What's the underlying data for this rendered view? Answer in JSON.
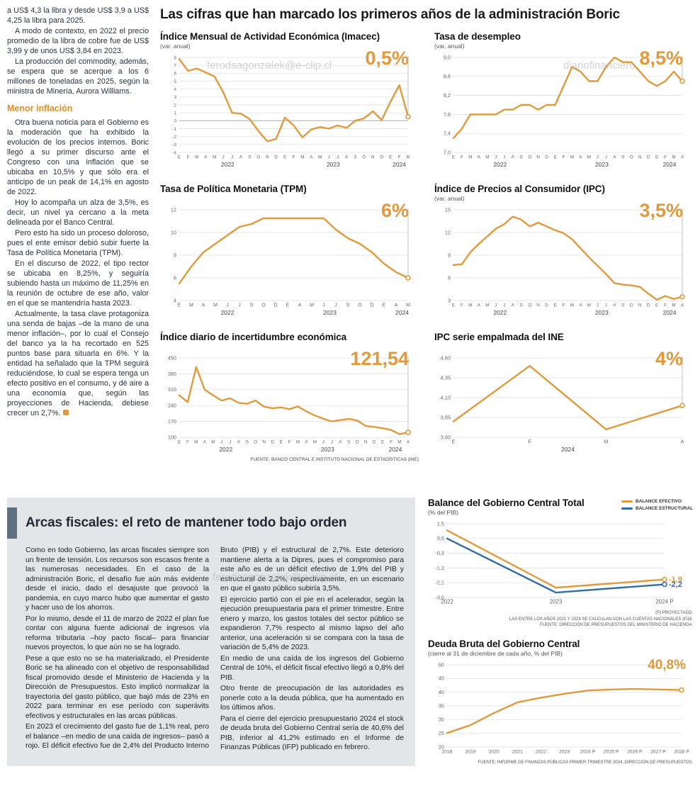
{
  "colors": {
    "orange": "#E2993B",
    "blue": "#336DA5",
    "panel_gray": "#E3E6E9",
    "accent_slate": "#5E7081"
  },
  "watermarks": {
    "left": "ferodsagonzalek@e-clip.cl",
    "right": "diariofinanciero",
    "bottom": "ferodsagonzalek@e-clip.cl"
  },
  "main_title": "Las cifras que han marcado los primeros años de la administración Boric",
  "article": {
    "lead_paragraphs": [
      "a US$ 4,3 la libra y desde US$ 3,9 a US$ 4,25 la libra para 2025.",
      "A modo de contexto, en 2022 el precio promedio de la libra de cobre fue de US$ 3,99 y de unos US$ 3,84 en 2023.",
      "La producción del commodity, además, se espera que se acerque a los 6 millones de toneladas en 2025, según la ministra de Minería, Aurora Williams."
    ],
    "heading": "Menor inflación",
    "body_paragraphs": [
      "Otra buena noticia para el Gobierno es la moderación que ha exhibido la evolución de los precios internos. Boric llegó a su primer discurso ante el Congreso con una inflación que se ubicaba en 10,5% y que sólo era el anticipo de un peak de 14,1% en agosto de 2022.",
      "Hoy lo acompaña un alza de 3,5%, es decir, un nivel ya cercano a la meta delineada por el Banco Central.",
      "Pero esto ha sido un proceso doloroso, pues el ente emisor debió subir fuerte la Tasa de Política Monetaria (TPM).",
      "En el discurso de 2022, el tipo rector se ubicaba en 8,25%, y seguiría subiendo hasta un máximo de 11,25% en la reunión de octubre de ese año, valor en el que se mantendría hasta 2023.",
      "Actualmente, la tasa clave protagoniza una senda de bajas –de la mano de una menor inflación–, por lo cual el Consejo del banco ya la ha recortado en 525 puntos base para situarla en 6%. Y la entidad ha señalado que la TPM seguirá reduciéndose, lo cual se espera tenga un efecto positivo en el consumo, y dé aire a una economía que, según las proyecciones de Hacienda, debiese crecer un 2,7%."
    ]
  },
  "source_note": "FUENTE: BANCO CENTRAL E INSTITUTO NACIONAL DE ESTADÍSTICAS (INE)",
  "arcas": {
    "title": "Arcas fiscales: el reto de mantener todo bajo orden",
    "paragraphs": [
      "Como en todo Gobierno, las arcas fiscales siempre son un frente de tensión. Los recursos son escasos frente a las numerosas necesidades. En el caso de la administración Boric, el desafío fue aún más evidente desde el inicio, dado el desajuste que provocó la pandemia, en cuyo marco hubo que aumentar el gasto y hacer uso de los ahorros.",
      "Por lo mismo, desde el 11 de marzo de 2022 el plan fue contar con alguna fuente adicional de ingresos vía reforma tributaria –hoy pacto fiscal– para financiar nuevos proyectos, lo que aún no se ha logrado.",
      "Pese a que esto no se ha materializado, el Presidente Boric se ha alineado con el objetivo de responsabilidad fiscal promovido desde el Ministerio de Hacienda y la Dirección de Presupuestos. Esto implicó normalizar la trayectoria del gasto público, que bajó más de 23% en 2022 para terminar en ese período con superávits efectivos y estructurales en las arcas públicas.",
      "En 2023 el crecimiento del gasto fue de 1,1% real, pero el balance –en medio de una caída de ingresos– pasó a rojo. El déficit efectivo fue de 2,4% del Producto Interno Bruto (PIB) y el estructural de 2,7%. Este deterioro mantiene alerta a la Dipres, pues el compromiso para este año es de un déficit efectivo de 1,9% del PIB y estructural de 2,2%, respectivamente, en un escenario en que el gasto público subiría 3,5%.",
      "El ejercicio partió con el pie en el acelerador, según la ejecución presupuestaria para el primer trimestre. Entre enero y marzo, los gastos totales del sector público se expandieron 7,7% respecto al mismo lapso del año anterior, una aceleración si se compara con la tasa de variación de 5,4% de 2023.",
      "En medio de una caída de los ingresos del Gobierno Central de 10%, el déficit fiscal efectivo llegó a 0,8% del PIB.",
      "Otro frente de preocupación de las autoridades es ponerle coto a la deuda pública, que ha aumentado en los últimos años.",
      "Para el cierre del ejercicio presupuestario 2024 el stock de deuda bruta del Gobierno Central sería de 40,6% del PIB, inferior al 41,2% estimado en el Informe de Finanzas Públicas (IFP) publicado en febrero."
    ]
  },
  "chart_data": [
    {
      "id": "imacec",
      "type": "line",
      "title": "Índice Mensual de Actividad Económica (Imacec)",
      "subtitle": "(var. anual)",
      "highlight": "0,5%",
      "y_ticks": [
        "8",
        "7",
        "6",
        "5",
        "4",
        "3",
        "2",
        "1",
        "0",
        "-1",
        "-2",
        "-3",
        "-4"
      ],
      "x_labels": [
        "E",
        "F",
        "M",
        "A",
        "M",
        "J",
        "J",
        "A",
        "S",
        "O",
        "N",
        "D",
        "E",
        "F",
        "M",
        "A",
        "M",
        "J",
        "J",
        "A",
        "S",
        "O",
        "N",
        "D",
        "E",
        "F",
        "M"
      ],
      "years": [
        {
          "label": "2022",
          "at": 5.5
        },
        {
          "label": "2023",
          "at": 17.5
        },
        {
          "label": "2024",
          "at": 25
        }
      ],
      "series": [
        {
          "name": "Imacec var. anual %",
          "color": "#E2993B",
          "values": [
            7.8,
            6.3,
            6.6,
            6.1,
            5.6,
            3.6,
            1.0,
            0.9,
            0.2,
            -1.3,
            -2.6,
            -2.3,
            0.4,
            -0.6,
            -2.1,
            -1.1,
            -0.8,
            -1.0,
            -0.6,
            -0.9,
            0.0,
            0.3,
            1.2,
            0.1,
            2.4,
            4.5,
            0.5
          ]
        }
      ],
      "leader": true,
      "y_font": 6.2
    },
    {
      "id": "desempleo",
      "type": "line",
      "title": "Tasa de desempleo",
      "subtitle": "(var. anual)",
      "highlight": "8,5%",
      "y_ticks": [
        "9,0",
        "8,6",
        "8,2",
        "7,8",
        "7,4",
        "7,0"
      ],
      "x_labels": [
        "E",
        "F",
        "M",
        "A",
        "M",
        "J",
        "J",
        "A",
        "S",
        "O",
        "N",
        "D",
        "E",
        "F",
        "M",
        "A",
        "M",
        "J",
        "J",
        "A",
        "S",
        "O",
        "N",
        "D",
        "E",
        "F",
        "M",
        "A"
      ],
      "years": [
        {
          "label": "2022",
          "at": 5.5
        },
        {
          "label": "2023",
          "at": 17.5
        },
        {
          "label": "2024",
          "at": 25.5
        }
      ],
      "series": [
        {
          "name": "Tasa de desempleo %",
          "color": "#E2993B",
          "values": [
            7.3,
            7.5,
            7.8,
            7.8,
            7.8,
            7.8,
            7.9,
            7.9,
            8.0,
            8.0,
            7.9,
            8.0,
            8.0,
            8.4,
            8.8,
            8.7,
            8.5,
            8.5,
            8.8,
            9.0,
            8.9,
            8.9,
            8.7,
            8.5,
            8.4,
            8.5,
            8.7,
            8.5
          ]
        }
      ],
      "leader": true
    },
    {
      "id": "tpm",
      "type": "line",
      "title": "Tasa de Política Monetaria (TPM)",
      "subtitle": "",
      "highlight": "6%",
      "y_ticks": [
        "12",
        "10",
        "8",
        "6",
        "4"
      ],
      "x_labels": [
        "E",
        "M",
        "A",
        "M",
        "J",
        "J",
        "S",
        "O",
        "D",
        "E",
        "A",
        "M",
        "J",
        "J",
        "S",
        "O",
        "D",
        "E",
        "A",
        "M"
      ],
      "years": [
        {
          "label": "2022",
          "at": 4
        },
        {
          "label": "2023",
          "at": 12.5
        },
        {
          "label": "2024",
          "at": 18.5
        }
      ],
      "series": [
        {
          "name": "TPM %",
          "color": "#E2993B",
          "values": [
            5.5,
            7.0,
            8.25,
            9.0,
            9.75,
            10.5,
            10.75,
            11.25,
            11.25,
            11.25,
            11.25,
            11.25,
            11.25,
            10.25,
            9.5,
            9.0,
            8.25,
            7.25,
            6.5,
            6.0
          ]
        }
      ],
      "leader": true,
      "x_font": 7
    },
    {
      "id": "ipc",
      "type": "line",
      "title": "Índice de Precios al Consumidor (IPC)",
      "subtitle": "(var. anual)",
      "highlight": "3,5%",
      "y_ticks": [
        "15",
        "12",
        "9",
        "6",
        "3"
      ],
      "x_labels": [
        "E",
        "F",
        "M",
        "A",
        "M",
        "J",
        "J",
        "A",
        "S",
        "O",
        "N",
        "D",
        "E",
        "F",
        "M",
        "A",
        "M",
        "J",
        "J",
        "A",
        "S",
        "O",
        "N",
        "D",
        "E",
        "F",
        "M",
        "A"
      ],
      "years": [
        {
          "label": "2022",
          "at": 5.5
        },
        {
          "label": "2023",
          "at": 17.5
        },
        {
          "label": "2024",
          "at": 25.5
        }
      ],
      "series": [
        {
          "name": "IPC var. anual %",
          "color": "#E2993B",
          "values": [
            7.7,
            7.8,
            9.4,
            10.5,
            11.5,
            12.5,
            13.1,
            14.1,
            13.7,
            12.8,
            13.3,
            12.8,
            12.3,
            11.9,
            11.1,
            9.9,
            8.7,
            7.6,
            6.5,
            5.3,
            5.1,
            5.0,
            4.8,
            3.9,
            3.1,
            3.6,
            3.2,
            3.5
          ]
        }
      ],
      "leader": true
    },
    {
      "id": "incertidumbre",
      "type": "line",
      "title": "Índice diario de incertidumbre económica",
      "subtitle": "",
      "highlight": "121,54",
      "y_ticks": [
        "450",
        "380",
        "310",
        "240",
        "170",
        "100"
      ],
      "x_labels": [
        "E",
        "F",
        "M",
        "A",
        "M",
        "J",
        "J",
        "A",
        "S",
        "O",
        "N",
        "D",
        "E",
        "F",
        "M",
        "A",
        "M",
        "J",
        "J",
        "A",
        "S",
        "O",
        "N",
        "D",
        "E",
        "F",
        "M",
        "A"
      ],
      "years": [
        {
          "label": "2022",
          "at": 5.5
        },
        {
          "label": "2023",
          "at": 17.5
        },
        {
          "label": "2024",
          "at": 25.5
        }
      ],
      "series": [
        {
          "name": "Índice de incertidumbre",
          "color": "#E2993B",
          "values": [
            285,
            255,
            410,
            310,
            285,
            262,
            272,
            252,
            248,
            262,
            235,
            228,
            232,
            224,
            236,
            214,
            196,
            182,
            170,
            176,
            181,
            174,
            150,
            146,
            140,
            132,
            114,
            121.54
          ]
        }
      ],
      "leader": true
    },
    {
      "id": "ipc_ine",
      "type": "line",
      "title": "IPC serie empalmada del INE",
      "subtitle": "",
      "highlight": "4%",
      "y_ticks": [
        "4,60",
        "4,35",
        "4,10",
        "3,85",
        "3,60"
      ],
      "x_labels": [
        "E",
        "F",
        "M",
        "A"
      ],
      "years": [
        {
          "label": "2024",
          "at": 1.5
        }
      ],
      "series": [
        {
          "name": "IPC serie empalmada var. anual %",
          "color": "#E2993B",
          "values": [
            3.8,
            4.5,
            3.7,
            4.0
          ]
        }
      ],
      "leader": true,
      "x_font": 7.5
    },
    {
      "id": "balance",
      "type": "line",
      "title": "Balance del Gobierno Central Total",
      "subtitle": "(% del PIB)",
      "y_ticks": [
        "1,5",
        "0,6",
        "-0,3",
        "-1,2",
        "-2,1",
        "-3,0"
      ],
      "x_labels": [
        "2022",
        "2023",
        "2024 P"
      ],
      "legend": [
        {
          "label": "BALANCE EFECTIVO",
          "color": "#E2993B"
        },
        {
          "label": "BALANCE ESTRUCTURAL",
          "color": "#336DA5"
        }
      ],
      "footnotes": [
        "(P) PROYECTADO.",
        "LAS ENTRE LOS AÑOS 2021 Y 2023 SE CALCULAN CON LAS CUENTAS NACIONALES 2018.",
        "FUENTE: DIRECCIÓN DE PRESUPUESTOS DEL MINISTERIO DE HACIENDA."
      ],
      "series": [
        {
          "name": "Balance efectivo",
          "color": "#E2993B",
          "values": [
            1.1,
            -2.4,
            -1.9
          ],
          "end_label": "-1,9"
        },
        {
          "name": "Balance estructural",
          "color": "#336DA5",
          "values": [
            0.6,
            -2.7,
            -2.2
          ],
          "end_label": "-2,2"
        }
      ],
      "x_font": 8,
      "pad_right": 38
    },
    {
      "id": "deuda",
      "type": "line",
      "title": "Deuda Bruta del Gobierno Central",
      "subtitle": "(cierre al 31 de diciembre de cada año, % del PIB)",
      "highlight": "40,8%",
      "footer": "FUENTE: INFORME DE FINANZAS PÚBLICAS PRIMER TRIMESTRE 2024, DIRECCIÓN DE PRESUPUESTOS.",
      "y_ticks": [
        "50",
        "45",
        "40",
        "35",
        "30",
        "25",
        "20"
      ],
      "x_labels": [
        "2018",
        "2019",
        "2020",
        "2021",
        "2022",
        "2023",
        "2024 P",
        "2025 P",
        "2026 P",
        "2027 P",
        "2028 P"
      ],
      "series": [
        {
          "name": "Deuda bruta % del PIB",
          "color": "#E2993B",
          "values": [
            25.1,
            28.0,
            32.4,
            36.3,
            38.0,
            39.4,
            40.6,
            41.0,
            41.2,
            41.0,
            40.8
          ]
        }
      ],
      "x_font": 6.8
    }
  ]
}
